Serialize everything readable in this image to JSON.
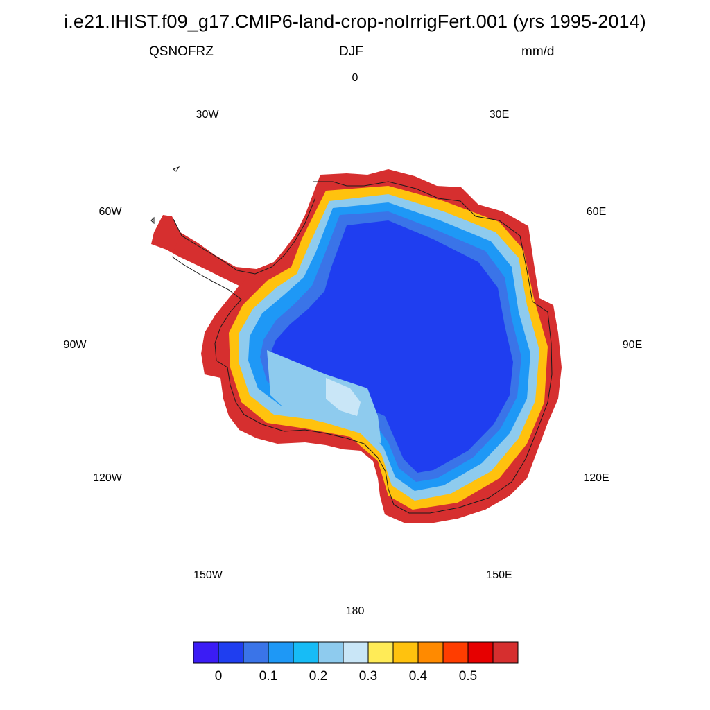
{
  "header": {
    "title": "i.e21.IHIST.f09_g17.CMIP6-land-crop-noIrrigFert.001 (yrs 1995-2014)",
    "variable": "QSNOFRZ",
    "season": "DJF",
    "units": "mm/d"
  },
  "map": {
    "projection": "south-polar-stereographic",
    "region": "Antarctica",
    "longitude_labels": [
      "0",
      "30E",
      "60E",
      "90E",
      "120E",
      "150E",
      "180",
      "150W",
      "120W",
      "90W",
      "60W",
      "30W"
    ]
  },
  "colorbar": {
    "colors": [
      "#3b1cf5",
      "#1f3ef0",
      "#3a74e8",
      "#1e98f6",
      "#17bcf6",
      "#8ecbee",
      "#c9e6f7",
      "#ffeb57",
      "#ffc20e",
      "#ff8a00",
      "#ff3d00",
      "#e60000",
      "#d62f2f"
    ],
    "tick_labels": [
      "0",
      "0.1",
      "0.2",
      "0.3",
      "0.4",
      "0.5"
    ]
  }
}
